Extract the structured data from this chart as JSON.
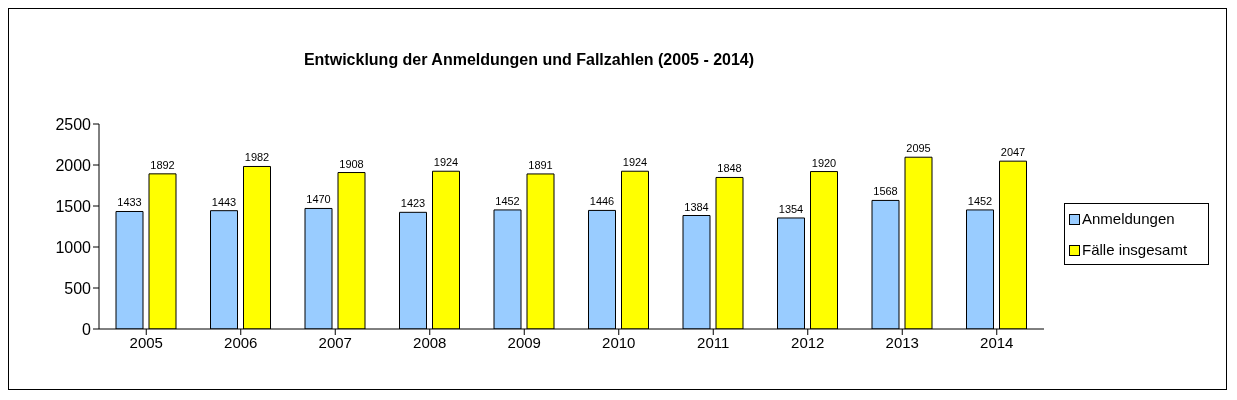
{
  "chart_data": {
    "type": "bar",
    "title": "Entwicklung der Anmeldungen und Fallzahlen (2005 - 2014)",
    "categories": [
      "2005",
      "2006",
      "2007",
      "2008",
      "2009",
      "2010",
      "2011",
      "2012",
      "2013",
      "2014"
    ],
    "series": [
      {
        "name": "Anmeldungen",
        "color": "#99ccff",
        "values": [
          1433,
          1443,
          1470,
          1423,
          1452,
          1446,
          1384,
          1354,
          1568,
          1452
        ]
      },
      {
        "name": "Fälle insgesamt",
        "color": "#ffff00",
        "values": [
          1892,
          1982,
          1908,
          1924,
          1891,
          1924,
          1848,
          1920,
          2095,
          2047
        ]
      }
    ],
    "ylim": [
      0,
      2500
    ],
    "yticks": [
      0,
      500,
      1000,
      1500,
      2000,
      2500
    ],
    "grid": false,
    "legend": "right",
    "data_labels": true
  }
}
